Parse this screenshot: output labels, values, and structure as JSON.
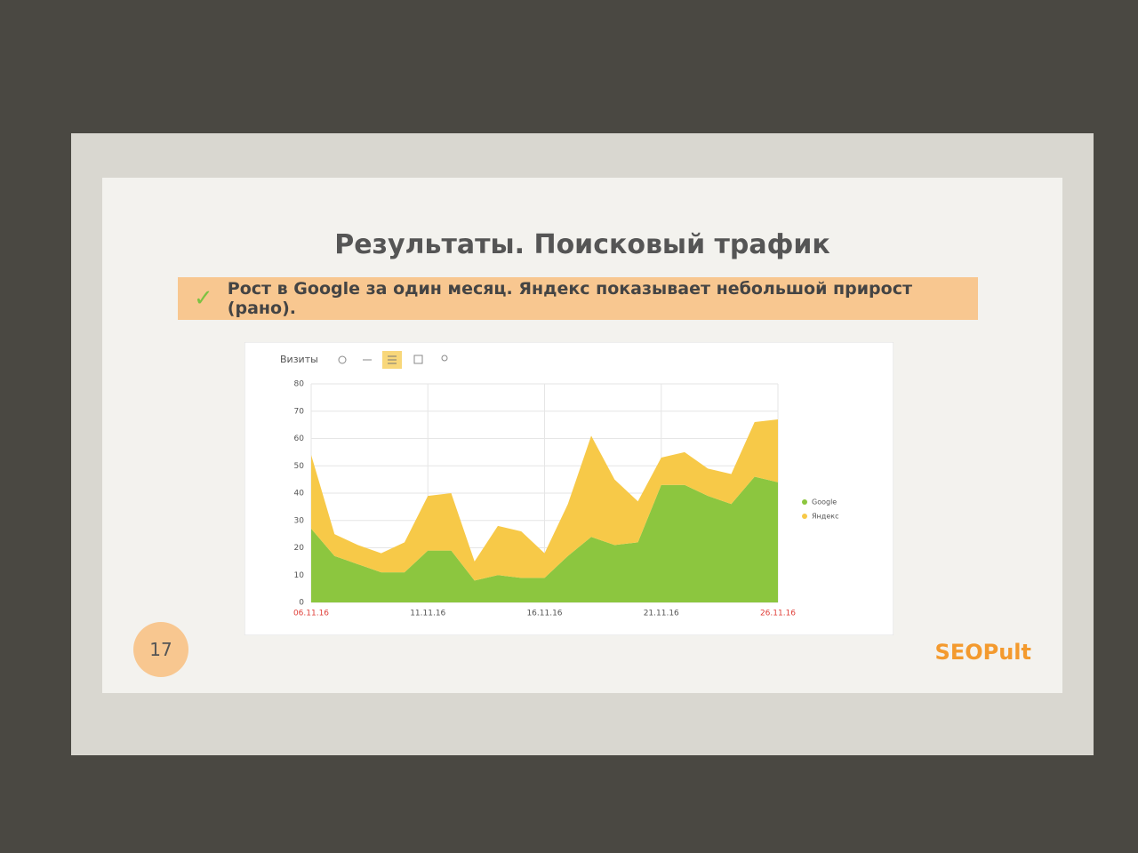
{
  "slide": {
    "title": "Результаты. Поисковый трафик",
    "subtitle": "Рост в Google за один месяц. Яндекс показывает небольшой прирост (рано).",
    "page_number": "17",
    "logo": "SEOPult"
  },
  "chart_data": {
    "type": "stacked_area",
    "title": "Визиты",
    "categories": [
      "06.11.16",
      null,
      null,
      null,
      null,
      "11.11.16",
      null,
      null,
      null,
      null,
      "16.11.16",
      null,
      null,
      null,
      null,
      "21.11.16",
      null,
      null,
      null,
      null,
      "26.11.16"
    ],
    "series": [
      {
        "name": "Google",
        "color": "#8cc63f",
        "values": [
          27,
          17,
          14,
          11,
          11,
          19,
          19,
          8,
          10,
          9,
          9,
          17,
          24,
          21,
          22,
          43,
          43,
          39,
          36,
          46,
          44
        ]
      },
      {
        "name": "Яндекс",
        "color": "#f7c948",
        "values": [
          27,
          8,
          7,
          7,
          11,
          20,
          21,
          7,
          18,
          17,
          9,
          19,
          37,
          24,
          15,
          10,
          12,
          10,
          11,
          20,
          23
        ]
      }
    ],
    "ylim": [
      0,
      80
    ],
    "yticks": [
      0,
      10,
      20,
      30,
      40,
      50,
      60,
      70,
      80
    ],
    "grid": true,
    "legend": "right"
  }
}
